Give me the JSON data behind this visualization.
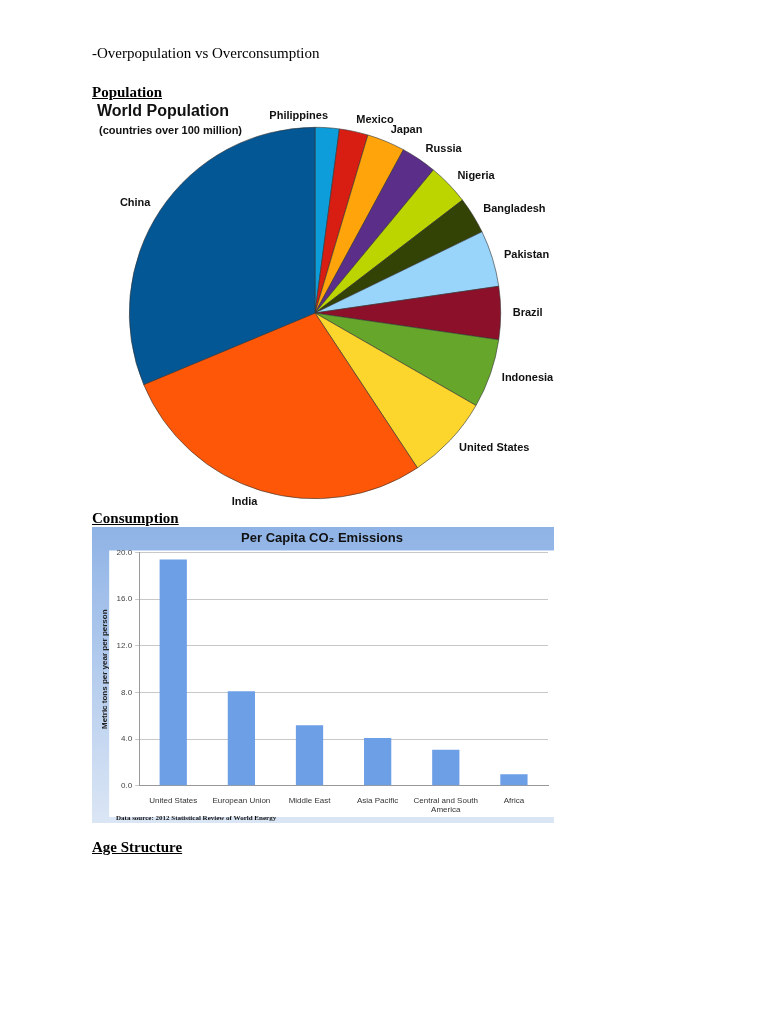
{
  "chart_data": [
    {
      "type": "pie",
      "title": "World Population",
      "subtitle": "(countries over 100 million)",
      "categories": [
        "Philippines",
        "Mexico",
        "Japan",
        "Russia",
        "Nigeria",
        "Bangladesh",
        "Pakistan",
        "Brazil",
        "Indonesia",
        "United States",
        "India",
        "China"
      ],
      "values": [
        2.1,
        2.5,
        3.3,
        3.1,
        3.6,
        3.2,
        4.9,
        4.6,
        6.0,
        7.4,
        28.0,
        31.3
      ],
      "colors": [
        "#0d9ddb",
        "#d81e12",
        "#ffa40a",
        "#5b2e8a",
        "#bcd500",
        "#334205",
        "#99d5fb",
        "#8c1029",
        "#66a62a",
        "#fcd52d",
        "#fd5707",
        "#045795"
      ],
      "legend": false,
      "annotations": [
        "-Overpopulation vs Overconsumption",
        "Population"
      ]
    },
    {
      "type": "bar",
      "title": "Per Capita CO₂ Emissions",
      "ylabel": "Metric tons per year per person",
      "categories": [
        "United States",
        "European Union",
        "Middle East",
        "Asia Pacific",
        "Central and South America",
        "Africa"
      ],
      "values": [
        19.4,
        8.1,
        5.2,
        4.1,
        3.1,
        1.0
      ],
      "color": "#6d9fe6",
      "ylim": [
        0,
        20
      ],
      "yticks": [
        {
          "value": 0,
          "label": "0.0"
        },
        {
          "value": 4,
          "label": "4.0"
        },
        {
          "value": 8,
          "label": "8.0"
        },
        {
          "value": 12,
          "label": "12.0"
        },
        {
          "value": 16,
          "label": "16.0"
        },
        {
          "value": 20,
          "label": "20.0"
        }
      ],
      "grid": "y",
      "legend": false,
      "annotations": [
        "Consumption",
        "Data source: 2012 Statistical Review of World Energy",
        "Age Structure"
      ]
    }
  ]
}
